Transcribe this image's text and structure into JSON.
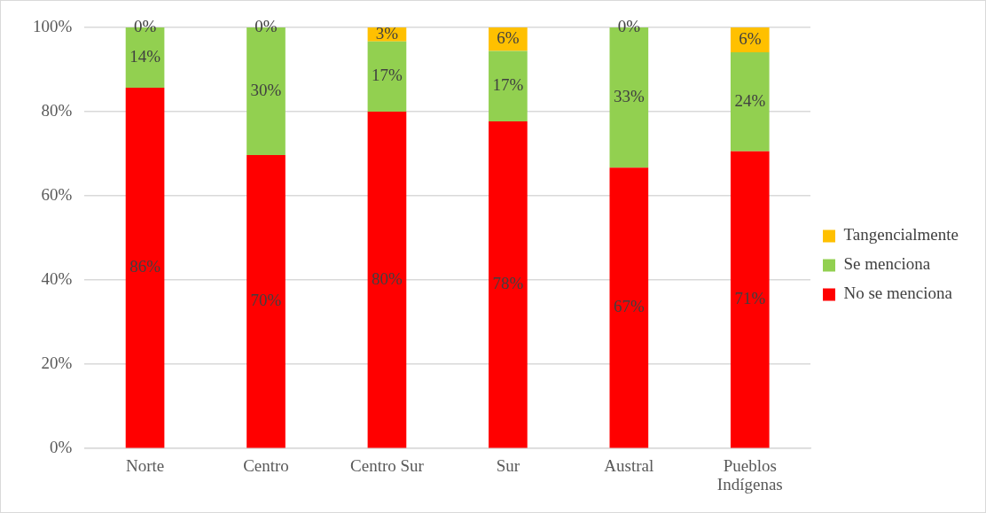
{
  "chart_data": {
    "type": "bar",
    "stacked": true,
    "categories": [
      "Norte",
      "Centro",
      "Centro Sur",
      "Sur",
      "Austral",
      "Pueblos Indígenas"
    ],
    "series": [
      {
        "name": "No se menciona",
        "color": "#ff0000",
        "values": [
          85.7,
          69.7,
          80,
          77.7,
          66.7,
          70.6
        ],
        "value_labels": [
          "86%",
          "70%",
          "80%",
          "78%",
          "67%",
          "71%"
        ]
      },
      {
        "name": "Se menciona",
        "color": "#92d050",
        "values": [
          14.3,
          30.3,
          16.7,
          16.7,
          33.3,
          23.5
        ],
        "value_labels": [
          "14%",
          "30%",
          "17%",
          "17%",
          "33%",
          "24%"
        ]
      },
      {
        "name": "Tangencialmente",
        "color": "#ffc000",
        "values": [
          0,
          0,
          3.3,
          5.6,
          0,
          5.9
        ],
        "value_labels": [
          "0%",
          "0%",
          "3%",
          "6%",
          "0%",
          "6%"
        ]
      }
    ],
    "ylim": [
      0,
      100
    ],
    "yticks": [
      {
        "value": 0,
        "label": "0%"
      },
      {
        "value": 20,
        "label": "20%"
      },
      {
        "value": 40,
        "label": "40%"
      },
      {
        "value": 60,
        "label": "60%"
      },
      {
        "value": 80,
        "label": "80%"
      },
      {
        "value": 100,
        "label": "100%"
      }
    ],
    "grid": "y",
    "legend": "right"
  }
}
